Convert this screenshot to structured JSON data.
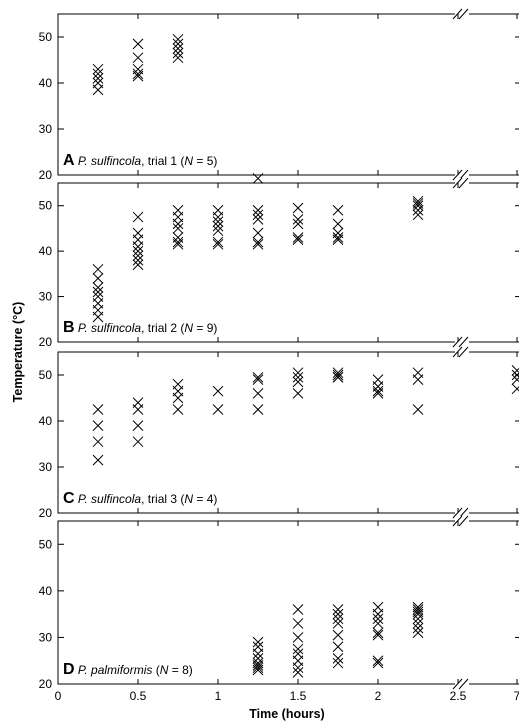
{
  "chart_data": {
    "type": "scatter",
    "marker": "x",
    "ylabel": "Temperature (°C)",
    "xlabel": "Time (hours)",
    "x_ticks": [
      "0",
      "0.5",
      "1",
      "1.5",
      "2",
      "2.5",
      "7"
    ],
    "xlim": [
      0,
      7
    ],
    "x_axis_break": "between 2.5 and 7",
    "ylim": [
      20,
      55
    ],
    "y_ticks": [
      "20",
      "30",
      "40",
      "50"
    ],
    "panels": [
      {
        "letter": "A",
        "species": "P. sulfincola",
        "rest": ", trial 1 (",
        "n_label": "N",
        "n_value": " = 5)",
        "points": [
          [
            0.25,
            42
          ],
          [
            0.25,
            41
          ],
          [
            0.25,
            40
          ],
          [
            0.25,
            38.5
          ],
          [
            0.25,
            43
          ],
          [
            0.5,
            48.5
          ],
          [
            0.5,
            45.5
          ],
          [
            0.5,
            43
          ],
          [
            0.5,
            42
          ],
          [
            0.5,
            41.5
          ],
          [
            0.75,
            49.5
          ],
          [
            0.75,
            48.5
          ],
          [
            0.75,
            47.5
          ],
          [
            0.75,
            46.5
          ],
          [
            0.75,
            45.5
          ]
        ]
      },
      {
        "letter": "B",
        "species": "P. sulfincola",
        "rest": ", trial 2 (",
        "n_label": "N",
        "n_value": " = 9)",
        "points": [
          [
            0.25,
            36
          ],
          [
            0.25,
            34
          ],
          [
            0.25,
            32
          ],
          [
            0.25,
            31
          ],
          [
            0.25,
            30
          ],
          [
            0.25,
            28.5
          ],
          [
            0.25,
            27
          ],
          [
            0.25,
            25.5
          ],
          [
            0.5,
            47.5
          ],
          [
            0.5,
            44
          ],
          [
            0.5,
            42.5
          ],
          [
            0.5,
            41
          ],
          [
            0.5,
            40
          ],
          [
            0.5,
            39
          ],
          [
            0.5,
            38
          ],
          [
            0.5,
            37
          ],
          [
            0.75,
            49
          ],
          [
            0.75,
            47.5
          ],
          [
            0.75,
            46
          ],
          [
            0.75,
            45
          ],
          [
            0.75,
            43
          ],
          [
            0.75,
            42
          ],
          [
            0.75,
            41.5
          ],
          [
            1,
            49
          ],
          [
            1,
            47.5
          ],
          [
            1,
            46.5
          ],
          [
            1,
            45.5
          ],
          [
            1,
            44.5
          ],
          [
            1,
            42
          ],
          [
            1,
            41.5
          ],
          [
            1.25,
            56
          ],
          [
            1.25,
            49
          ],
          [
            1.25,
            48
          ],
          [
            1.25,
            47
          ],
          [
            1.25,
            44
          ],
          [
            1.25,
            42
          ],
          [
            1.25,
            41.5
          ],
          [
            1.5,
            49.5
          ],
          [
            1.5,
            47
          ],
          [
            1.5,
            46
          ],
          [
            1.5,
            43
          ],
          [
            1.5,
            42.5
          ],
          [
            1.75,
            49
          ],
          [
            1.75,
            46
          ],
          [
            1.75,
            44
          ],
          [
            1.75,
            43
          ],
          [
            1.75,
            42.5
          ],
          [
            2.25,
            51
          ],
          [
            2.25,
            50.5
          ],
          [
            2.25,
            50
          ],
          [
            2.25,
            49
          ],
          [
            2.25,
            48
          ]
        ]
      },
      {
        "letter": "C",
        "species": "P. sulfincola",
        "rest": ", trial 3 (",
        "n_label": "N",
        "n_value": " = 4)",
        "points": [
          [
            0.25,
            42.5
          ],
          [
            0.25,
            39
          ],
          [
            0.25,
            35.5
          ],
          [
            0.25,
            31.5
          ],
          [
            0.5,
            44
          ],
          [
            0.5,
            42.5
          ],
          [
            0.5,
            39
          ],
          [
            0.5,
            35.5
          ],
          [
            0.75,
            48
          ],
          [
            0.75,
            46.5
          ],
          [
            0.75,
            45
          ],
          [
            0.75,
            42.5
          ],
          [
            1,
            46.5
          ],
          [
            1,
            42.5
          ],
          [
            1.25,
            49.5
          ],
          [
            1.25,
            49
          ],
          [
            1.25,
            46
          ],
          [
            1.25,
            42.5
          ],
          [
            1.5,
            50.5
          ],
          [
            1.5,
            49.5
          ],
          [
            1.5,
            48.5
          ],
          [
            1.5,
            46
          ],
          [
            1.75,
            50.5
          ],
          [
            1.75,
            50
          ],
          [
            1.75,
            49.5
          ],
          [
            1.75,
            49.5
          ],
          [
            2,
            49
          ],
          [
            2,
            47.5
          ],
          [
            2,
            46.5
          ],
          [
            2,
            46
          ],
          [
            2.25,
            50.5
          ],
          [
            2.25,
            49
          ],
          [
            2.25,
            42.5
          ],
          [
            7,
            51
          ],
          [
            7,
            50
          ],
          [
            7,
            49
          ],
          [
            7,
            47
          ]
        ]
      },
      {
        "letter": "D",
        "species": "P. palmiformis",
        "rest": " (",
        "n_label": "N",
        "n_value": " = 8)",
        "points": [
          [
            1.25,
            29
          ],
          [
            1.25,
            28
          ],
          [
            1.25,
            26.5
          ],
          [
            1.25,
            25.5
          ],
          [
            1.25,
            24.5
          ],
          [
            1.25,
            24
          ],
          [
            1.25,
            23.5
          ],
          [
            1.25,
            23
          ],
          [
            1.5,
            36
          ],
          [
            1.5,
            33
          ],
          [
            1.5,
            30
          ],
          [
            1.5,
            27.5
          ],
          [
            1.5,
            26.5
          ],
          [
            1.5,
            25
          ],
          [
            1.5,
            23.5
          ],
          [
            1.5,
            22.5
          ],
          [
            1.75,
            36
          ],
          [
            1.75,
            35
          ],
          [
            1.75,
            34
          ],
          [
            1.75,
            33
          ],
          [
            1.75,
            30.5
          ],
          [
            1.75,
            28
          ],
          [
            1.75,
            25.5
          ],
          [
            1.75,
            24.5
          ],
          [
            2,
            36.5
          ],
          [
            2,
            35
          ],
          [
            2,
            34
          ],
          [
            2,
            33
          ],
          [
            2,
            31
          ],
          [
            2,
            30.5
          ],
          [
            2,
            25
          ],
          [
            2,
            24.5
          ],
          [
            2.25,
            36.5
          ],
          [
            2.25,
            36
          ],
          [
            2.25,
            35.5
          ],
          [
            2.25,
            35
          ],
          [
            2.25,
            34
          ],
          [
            2.25,
            33
          ],
          [
            2.25,
            32
          ],
          [
            2.25,
            31
          ]
        ]
      }
    ]
  }
}
